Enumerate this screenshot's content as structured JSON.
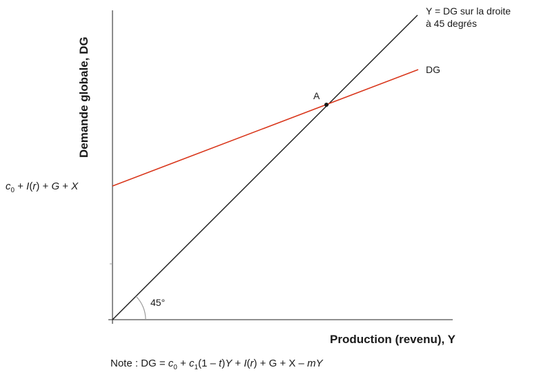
{
  "diagram": {
    "y_axis_title": "Demande globale, DG",
    "x_axis_title": "Production (revenu), Y",
    "line_45_label_line1": "Y = DG sur la droite",
    "line_45_label_line2": "à 45 degrés",
    "dg_label": "DG",
    "point_label": "A",
    "angle_label": "45°",
    "intercept_label": {
      "c": "c",
      "c_sub": "0",
      "rest_a": " + ",
      "I": "I",
      "paren_open": "(",
      "r": "r",
      "paren_close": ")",
      "rest_b": " + ",
      "G": "G",
      "rest_c": " + ",
      "X": "X"
    },
    "note": {
      "prefix": "Note : DG = ",
      "c0": "c",
      "c0_sub": "0",
      "plus1": " + ",
      "c1": "c",
      "c1_sub": "1",
      "mid": "(1 – ",
      "t": "t",
      "close": ")",
      "Y": "Y",
      "plus2": " + ",
      "I": "I",
      "r_open": "(",
      "r": "r",
      "r_close": ")",
      "plus3": " + G + X – ",
      "m": "m",
      "Y2": "Y"
    },
    "colors": {
      "axis": "#4d4d4d",
      "line_45": "#1a1a1a",
      "dg_line": "#d9371c"
    }
  }
}
